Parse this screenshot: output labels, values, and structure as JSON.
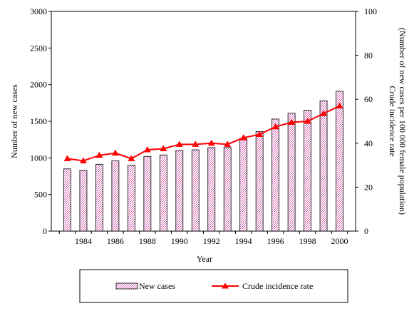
{
  "chart_data": {
    "type": "bar",
    "x": [
      1983,
      1984,
      1985,
      1986,
      1987,
      1988,
      1989,
      1990,
      1991,
      1992,
      1993,
      1994,
      1995,
      1996,
      1997,
      1998,
      1999,
      2000
    ],
    "x_tick_labels": [
      "1984",
      "1986",
      "1988",
      "1990",
      "1992",
      "1994",
      "1996",
      "1998",
      "2000"
    ],
    "xlabel": "Year",
    "ylabel_left": "Number of new cases",
    "ylabel_right_line1": "Crude incidence rate",
    "ylabel_right_line2": "(Number of new cases per 100 000 female population)",
    "ylim_left": [
      0,
      3000
    ],
    "yticks_left": [
      "0",
      "500",
      "1000",
      "1500",
      "2000",
      "2500",
      "3000"
    ],
    "ylim_right": [
      0,
      100
    ],
    "yticks_right": [
      "0",
      "20",
      "40",
      "60",
      "80",
      "100"
    ],
    "grid": false,
    "legend_placement": "bottom",
    "series": [
      {
        "name": "New cases",
        "type": "bar",
        "axis": "left",
        "color": "#e8b4d8",
        "values": [
          850,
          830,
          910,
          960,
          900,
          1020,
          1040,
          1100,
          1110,
          1140,
          1140,
          1260,
          1360,
          1530,
          1610,
          1650,
          1780,
          1910
        ]
      },
      {
        "name": "Crude incidence rate",
        "type": "line",
        "axis": "right",
        "color": "#ff0000",
        "values": [
          33,
          32,
          34.5,
          35.5,
          33,
          37,
          37.5,
          39.5,
          39.5,
          40,
          39.5,
          42.5,
          44,
          47.5,
          49.5,
          50,
          53.5,
          57
        ]
      }
    ]
  }
}
